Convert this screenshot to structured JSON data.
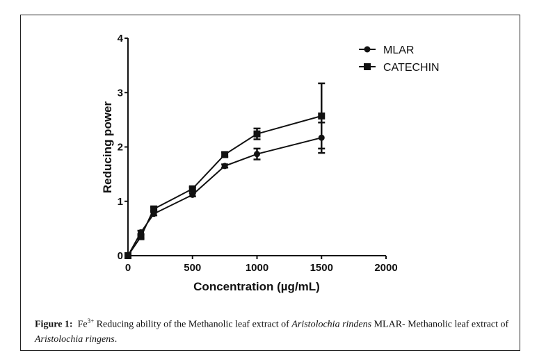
{
  "chart_data": {
    "type": "line",
    "title": "",
    "xlabel": "Concentration (µg/mL)",
    "ylabel": "Reducing power",
    "xlim": [
      0,
      2000
    ],
    "ylim": [
      0,
      4
    ],
    "xticks": [
      0,
      500,
      1000,
      1500,
      2000
    ],
    "yticks": [
      0,
      1,
      2,
      3,
      4
    ],
    "grid": false,
    "legend_position": "top-right",
    "x": [
      0,
      100,
      200,
      500,
      750,
      1000,
      1500
    ],
    "series": [
      {
        "name": "MLAR",
        "marker": "circle",
        "values": [
          0,
          0.43,
          0.77,
          1.12,
          1.65,
          1.87,
          2.17
        ],
        "errors": [
          0,
          0.03,
          0.03,
          0.03,
          0.03,
          0.1,
          0.28
        ]
      },
      {
        "name": "CATECHIN",
        "marker": "square",
        "values": [
          0,
          0.35,
          0.86,
          1.23,
          1.86,
          2.24,
          2.57
        ],
        "errors": [
          0,
          0.03,
          0.03,
          0.03,
          0.04,
          0.1,
          0.6
        ]
      }
    ]
  },
  "caption": {
    "label": "Figure 1:",
    "fe": "Fe",
    "fe_sup": "3+",
    "text1": " Reducing ability of the Methanolic leaf extract of ",
    "species1": "Aristolochia rindens",
    "text2": " MLAR- Methanolic leaf extract of ",
    "species2": "Aristolochia ringens",
    "text3": "."
  }
}
